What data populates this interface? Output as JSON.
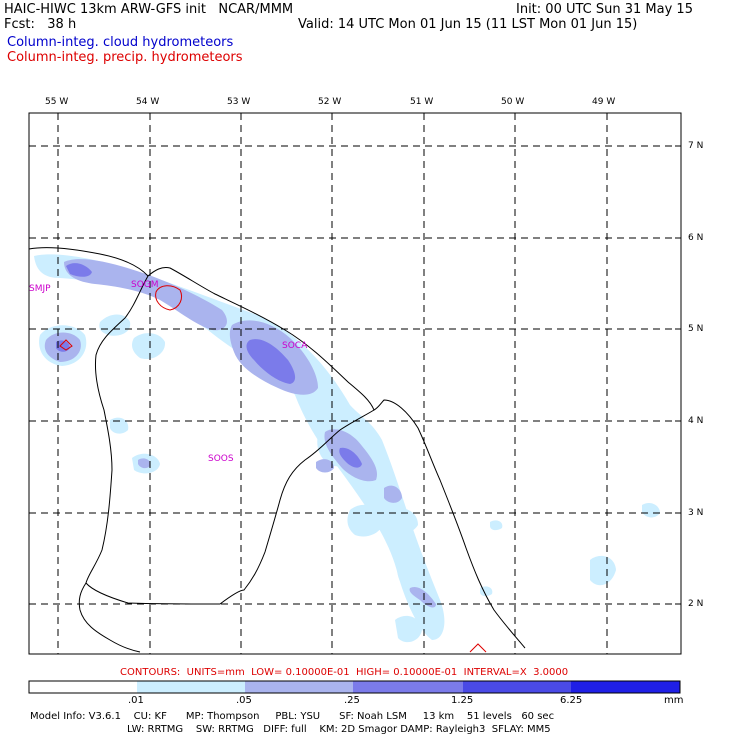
{
  "header": {
    "model_title": "HAIC-HIWC 13km ARW-GFS init   NCAR/MMM",
    "fcst": "Fcst:   38 h",
    "init": "Init: 00 UTC Sun 31 May 15",
    "valid": "Valid: 14 UTC Mon 01 Jun 15 (11 LST Mon 01 Jun 15)",
    "field_cloud": "Column-integ. cloud hydrometeors",
    "field_precip": "Column-integ. precip. hydrometeors",
    "cloud_color": "#0000cc",
    "precip_color": "#dd0000"
  },
  "map": {
    "lon_labels": [
      "55 W",
      "54 W",
      "53 W",
      "52 W",
      "51 W",
      "50 W",
      "49 W"
    ],
    "lat_labels": [
      "7 N",
      "6 N",
      "5 N",
      "4 N",
      "3 N",
      "2 N"
    ],
    "stations": [
      "SMJP",
      "SOGM",
      "SOCA",
      "SOOS"
    ]
  },
  "contours_note": "CONTOURS:  UNITS=mm  LOW= 0.10000E-01  HIGH= 0.10000E-01  INTERVAL=X  3.0000",
  "colorbar": {
    "ticks": [
      ".01",
      ".05",
      ".25",
      "1.25",
      "6.25"
    ],
    "units": "mm",
    "colors": [
      "#ffffff",
      "#cceeff",
      "#aab4ee",
      "#7b7bea",
      "#4a4ae6",
      "#1f1fe6"
    ]
  },
  "footer": {
    "line1": "Model Info: V3.6.1    CU: KF      MP: Thompson     PBL: YSU      SF: Noah LSM     13 km    51 levels   60 sec",
    "line2": "LW: RRTMG    SW: RRTMG   DIFF: full    KM: 2D Smagor DAMP: Rayleigh3  SFLAY: MM5"
  }
}
